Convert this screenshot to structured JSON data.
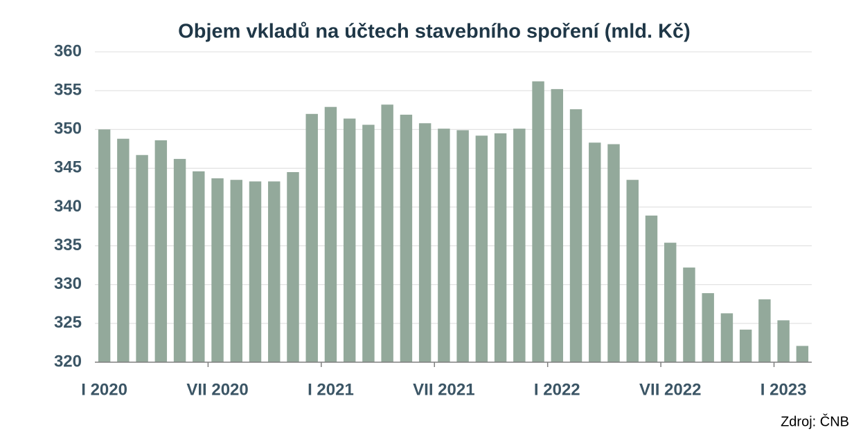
{
  "chart_data": {
    "type": "bar",
    "title": "Objem vkladů na účtech stavebního spoření (mld. Kč)",
    "source": "Zdroj: ČNB",
    "categories": [
      "I 2020",
      null,
      null,
      null,
      null,
      null,
      "VII 2020",
      null,
      null,
      null,
      null,
      null,
      "I 2021",
      null,
      null,
      null,
      null,
      null,
      "VII 2021",
      null,
      null,
      null,
      null,
      null,
      "I 2022",
      null,
      null,
      null,
      null,
      null,
      "VII 2022",
      null,
      null,
      null,
      null,
      null,
      "I 2023",
      null
    ],
    "values": [
      350.0,
      348.8,
      346.7,
      348.6,
      346.2,
      344.6,
      343.7,
      343.5,
      343.3,
      343.3,
      344.5,
      352.0,
      352.9,
      351.4,
      350.6,
      353.2,
      351.9,
      350.8,
      350.1,
      349.9,
      349.2,
      349.5,
      350.1,
      356.2,
      355.2,
      352.6,
      348.3,
      348.1,
      343.5,
      338.9,
      335.4,
      332.2,
      328.9,
      326.3,
      324.2,
      328.1,
      325.4,
      322.1
    ],
    "color": "#93a99b",
    "ylim": [
      320,
      360
    ],
    "yticks": [
      320,
      325,
      330,
      335,
      340,
      345,
      350,
      355,
      360
    ],
    "grid": true
  }
}
